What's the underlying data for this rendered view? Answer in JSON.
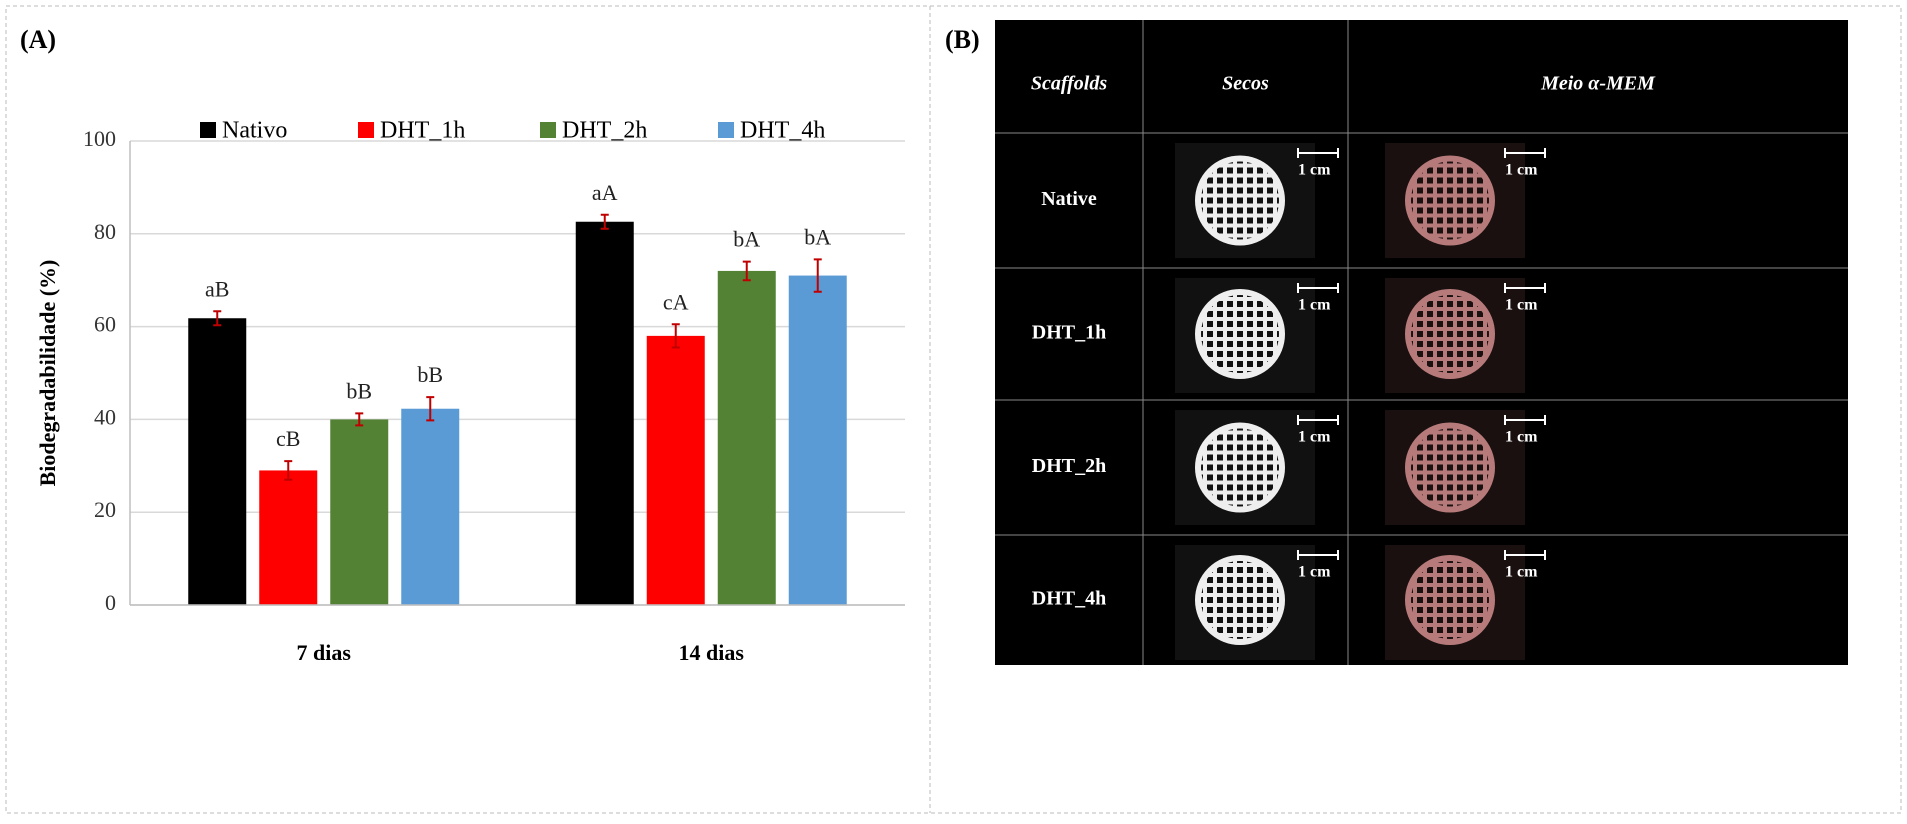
{
  "chart_data": {
    "type": "bar",
    "panel_label": "(A)",
    "y_label": "Biodegradabilidade (%)",
    "categories": [
      "7 dias",
      "14 dias"
    ],
    "series": [
      {
        "name": "Nativo",
        "color": "#000000",
        "values": [
          61.8,
          82.6
        ],
        "errors": [
          1.5,
          1.5
        ],
        "annotations": [
          "aB",
          "aA"
        ]
      },
      {
        "name": "DHT_1h",
        "color": "#ff0000",
        "values": [
          29,
          58
        ],
        "errors": [
          2,
          2.5
        ],
        "annotations": [
          "cB",
          "cA"
        ]
      },
      {
        "name": "DHT_2h",
        "color": "#548235",
        "values": [
          40,
          72
        ],
        "errors": [
          1.3,
          2
        ],
        "annotations": [
          "bB",
          "bA"
        ]
      },
      {
        "name": "DHT_4h",
        "color": "#5b9bd5",
        "values": [
          42.3,
          71
        ],
        "errors": [
          2.5,
          3.5
        ],
        "annotations": [
          "bB",
          "bA"
        ]
      }
    ],
    "ylim": [
      0,
      100
    ],
    "yticks": [
      0,
      20,
      40,
      60,
      80,
      100
    ],
    "grid": true,
    "legend": "top",
    "error_color": "#c00000"
  },
  "panel_b": {
    "panel_label": "(B)",
    "columns": [
      "Scaffolds",
      "Secos",
      "Meio α-MEM"
    ],
    "rows": [
      "Native",
      "DHT_1h",
      "DHT_2h",
      "DHT_4h"
    ],
    "scale_bar": "1 cm"
  }
}
